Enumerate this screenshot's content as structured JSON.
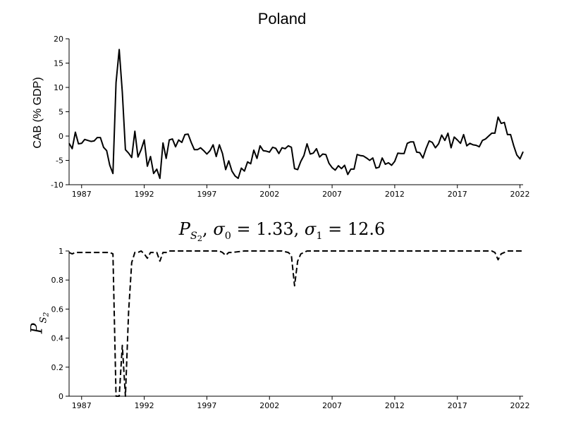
{
  "chart_data": [
    {
      "type": "line",
      "title": "Poland",
      "xlabel": "",
      "ylabel": "CAB (% GDP)",
      "xlim": [
        1986.0,
        2022.25
      ],
      "ylim": [
        -10,
        20
      ],
      "x_ticks": [
        1987,
        1992,
        1997,
        2002,
        2007,
        2012,
        2017,
        2022
      ],
      "y_ticks": [
        -10,
        -5,
        0,
        5,
        10,
        15,
        20
      ],
      "series": [
        {
          "name": "CAB",
          "line_style": "solid",
          "points": [
            [
              1986.0,
              -1.5
            ],
            [
              1986.25,
              -2.6
            ],
            [
              1986.5,
              0.8
            ],
            [
              1986.75,
              -1.6
            ],
            [
              1987.0,
              -1.5
            ],
            [
              1987.25,
              -0.7
            ],
            [
              1987.5,
              -0.9
            ],
            [
              1987.75,
              -1.1
            ],
            [
              1988.0,
              -1.0
            ],
            [
              1988.25,
              -0.3
            ],
            [
              1988.5,
              -0.3
            ],
            [
              1988.75,
              -2.3
            ],
            [
              1989.0,
              -3.0
            ],
            [
              1989.25,
              -6.0
            ],
            [
              1989.5,
              -7.7
            ],
            [
              1989.75,
              11.0
            ],
            [
              1990.0,
              17.8
            ],
            [
              1990.25,
              9.0
            ],
            [
              1990.5,
              -2.8
            ],
            [
              1990.75,
              -3.5
            ],
            [
              1991.0,
              -4.4
            ],
            [
              1991.25,
              1.0
            ],
            [
              1991.5,
              -4.3
            ],
            [
              1991.75,
              -2.8
            ],
            [
              1992.0,
              -0.8
            ],
            [
              1992.25,
              -6.2
            ],
            [
              1992.5,
              -4.2
            ],
            [
              1992.75,
              -7.7
            ],
            [
              1993.0,
              -6.8
            ],
            [
              1993.25,
              -8.7
            ],
            [
              1993.5,
              -1.4
            ],
            [
              1993.75,
              -4.6
            ],
            [
              1994.0,
              -0.8
            ],
            [
              1994.25,
              -0.6
            ],
            [
              1994.5,
              -2.2
            ],
            [
              1994.75,
              -0.8
            ],
            [
              1995.0,
              -1.3
            ],
            [
              1995.25,
              0.3
            ],
            [
              1995.5,
              0.4
            ],
            [
              1995.75,
              -1.3
            ],
            [
              1996.0,
              -2.8
            ],
            [
              1996.25,
              -2.8
            ],
            [
              1996.5,
              -2.4
            ],
            [
              1996.75,
              -3.0
            ],
            [
              1997.0,
              -3.7
            ],
            [
              1997.25,
              -3.0
            ],
            [
              1997.5,
              -1.8
            ],
            [
              1997.75,
              -4.2
            ],
            [
              1998.0,
              -1.8
            ],
            [
              1998.25,
              -3.6
            ],
            [
              1998.5,
              -6.9
            ],
            [
              1998.75,
              -5.1
            ],
            [
              1999.0,
              -7.2
            ],
            [
              1999.25,
              -8.2
            ],
            [
              1999.5,
              -8.7
            ],
            [
              1999.75,
              -6.6
            ],
            [
              2000.0,
              -7.2
            ],
            [
              2000.25,
              -5.3
            ],
            [
              2000.5,
              -5.7
            ],
            [
              2000.75,
              -2.9
            ],
            [
              2001.0,
              -4.6
            ],
            [
              2001.25,
              -2.0
            ],
            [
              2001.5,
              -3.0
            ],
            [
              2001.75,
              -3.1
            ],
            [
              2002.0,
              -3.3
            ],
            [
              2002.25,
              -2.3
            ],
            [
              2002.5,
              -2.5
            ],
            [
              2002.75,
              -3.6
            ],
            [
              2003.0,
              -2.4
            ],
            [
              2003.25,
              -2.6
            ],
            [
              2003.5,
              -2.0
            ],
            [
              2003.75,
              -2.3
            ],
            [
              2004.0,
              -6.7
            ],
            [
              2004.25,
              -6.9
            ],
            [
              2004.5,
              -5.2
            ],
            [
              2004.75,
              -4.0
            ],
            [
              2005.0,
              -1.6
            ],
            [
              2005.25,
              -3.7
            ],
            [
              2005.5,
              -3.5
            ],
            [
              2005.75,
              -2.6
            ],
            [
              2006.0,
              -4.3
            ],
            [
              2006.25,
              -3.7
            ],
            [
              2006.5,
              -3.8
            ],
            [
              2006.75,
              -5.6
            ],
            [
              2007.0,
              -6.5
            ],
            [
              2007.25,
              -7.0
            ],
            [
              2007.5,
              -6.1
            ],
            [
              2007.75,
              -6.7
            ],
            [
              2008.0,
              -6.0
            ],
            [
              2008.25,
              -7.9
            ],
            [
              2008.5,
              -6.8
            ],
            [
              2008.75,
              -6.8
            ],
            [
              2009.0,
              -3.8
            ],
            [
              2009.25,
              -4.0
            ],
            [
              2009.5,
              -4.1
            ],
            [
              2009.75,
              -4.5
            ],
            [
              2010.0,
              -5.0
            ],
            [
              2010.25,
              -4.5
            ],
            [
              2010.5,
              -6.6
            ],
            [
              2010.75,
              -6.4
            ],
            [
              2011.0,
              -4.5
            ],
            [
              2011.25,
              -5.8
            ],
            [
              2011.5,
              -5.5
            ],
            [
              2011.75,
              -6.0
            ],
            [
              2012.0,
              -5.2
            ],
            [
              2012.25,
              -3.5
            ],
            [
              2012.5,
              -3.6
            ],
            [
              2012.75,
              -3.6
            ],
            [
              2013.0,
              -1.5
            ],
            [
              2013.25,
              -1.2
            ],
            [
              2013.5,
              -1.2
            ],
            [
              2013.75,
              -3.3
            ],
            [
              2014.0,
              -3.4
            ],
            [
              2014.25,
              -4.5
            ],
            [
              2014.5,
              -2.6
            ],
            [
              2014.75,
              -1.0
            ],
            [
              2015.0,
              -1.3
            ],
            [
              2015.25,
              -2.4
            ],
            [
              2015.5,
              -1.6
            ],
            [
              2015.75,
              0.2
            ],
            [
              2016.0,
              -0.9
            ],
            [
              2016.25,
              0.6
            ],
            [
              2016.5,
              -2.4
            ],
            [
              2016.75,
              -0.2
            ],
            [
              2017.0,
              -0.8
            ],
            [
              2017.25,
              -1.5
            ],
            [
              2017.5,
              0.3
            ],
            [
              2017.75,
              -2.0
            ],
            [
              2018.0,
              -1.5
            ],
            [
              2018.25,
              -1.8
            ],
            [
              2018.5,
              -1.9
            ],
            [
              2018.75,
              -2.2
            ],
            [
              2019.0,
              -0.9
            ],
            [
              2019.25,
              -0.6
            ],
            [
              2019.5,
              0.0
            ],
            [
              2019.75,
              0.6
            ],
            [
              2020.0,
              0.6
            ],
            [
              2020.25,
              3.9
            ],
            [
              2020.5,
              2.6
            ],
            [
              2020.75,
              2.8
            ],
            [
              2021.0,
              0.3
            ],
            [
              2021.25,
              0.3
            ],
            [
              2021.5,
              -2.0
            ],
            [
              2021.75,
              -3.9
            ],
            [
              2022.0,
              -4.7
            ],
            [
              2022.25,
              -3.2
            ]
          ]
        }
      ]
    },
    {
      "type": "line",
      "title_parts": {
        "p": "P",
        "s": "S",
        "two": "2",
        "sigma0": "σ",
        "zero": "0",
        "eq0": " = 1.33, ",
        "sigma1": "σ",
        "one": "1",
        "eq1": " = 12.6"
      },
      "xlabel": "",
      "ylabel_parts": {
        "p": "P",
        "s": "S",
        "two": "2"
      },
      "xlim": [
        1986.0,
        2022.25
      ],
      "ylim": [
        0,
        1
      ],
      "x_ticks": [
        1987,
        1992,
        1997,
        2002,
        2007,
        2012,
        2017,
        2022
      ],
      "y_ticks": [
        0,
        0.2,
        0.4,
        0.6,
        0.8,
        1
      ],
      "y_tick_labels": [
        "0",
        "0.2",
        "0.4",
        "0.6",
        "0.8",
        "1"
      ],
      "series": [
        {
          "name": "P_S2",
          "line_style": "dashed",
          "points": [
            [
              1986.0,
              0.99
            ],
            [
              1986.25,
              0.98
            ],
            [
              1986.5,
              0.99
            ],
            [
              1986.75,
              0.99
            ],
            [
              1987.0,
              0.99
            ],
            [
              1987.5,
              0.99
            ],
            [
              1988.0,
              0.99
            ],
            [
              1988.5,
              0.99
            ],
            [
              1989.0,
              0.99
            ],
            [
              1989.25,
              0.99
            ],
            [
              1989.5,
              0.98
            ],
            [
              1989.75,
              0.0
            ],
            [
              1990.0,
              0.0
            ],
            [
              1990.25,
              0.35
            ],
            [
              1990.5,
              0.0
            ],
            [
              1990.75,
              0.58
            ],
            [
              1991.0,
              0.92
            ],
            [
              1991.25,
              0.99
            ],
            [
              1991.5,
              0.99
            ],
            [
              1991.75,
              1.0
            ],
            [
              1992.0,
              0.98
            ],
            [
              1992.25,
              0.95
            ],
            [
              1992.5,
              0.99
            ],
            [
              1992.75,
              0.99
            ],
            [
              1993.0,
              0.99
            ],
            [
              1993.25,
              0.93
            ],
            [
              1993.5,
              0.99
            ],
            [
              1993.75,
              0.99
            ],
            [
              1994.0,
              1.0
            ],
            [
              1995.0,
              1.0
            ],
            [
              1996.0,
              1.0
            ],
            [
              1997.0,
              1.0
            ],
            [
              1998.0,
              1.0
            ],
            [
              1998.25,
              0.99
            ],
            [
              1998.5,
              0.97
            ],
            [
              1998.75,
              0.99
            ],
            [
              1999.0,
              0.99
            ],
            [
              2000.0,
              1.0
            ],
            [
              2001.0,
              1.0
            ],
            [
              2002.0,
              1.0
            ],
            [
              2003.0,
              1.0
            ],
            [
              2003.5,
              0.99
            ],
            [
              2003.75,
              0.97
            ],
            [
              2004.0,
              0.76
            ],
            [
              2004.25,
              0.93
            ],
            [
              2004.5,
              0.98
            ],
            [
              2004.75,
              0.99
            ],
            [
              2005.0,
              1.0
            ],
            [
              2006.0,
              1.0
            ],
            [
              2007.0,
              1.0
            ],
            [
              2008.0,
              1.0
            ],
            [
              2009.0,
              1.0
            ],
            [
              2010.0,
              1.0
            ],
            [
              2011.0,
              1.0
            ],
            [
              2012.0,
              1.0
            ],
            [
              2013.0,
              1.0
            ],
            [
              2014.0,
              1.0
            ],
            [
              2015.0,
              1.0
            ],
            [
              2016.0,
              1.0
            ],
            [
              2017.0,
              1.0
            ],
            [
              2018.0,
              1.0
            ],
            [
              2019.0,
              1.0
            ],
            [
              2019.75,
              1.0
            ],
            [
              2020.0,
              0.99
            ],
            [
              2020.25,
              0.94
            ],
            [
              2020.5,
              0.98
            ],
            [
              2020.75,
              0.99
            ],
            [
              2021.0,
              1.0
            ],
            [
              2022.0,
              1.0
            ],
            [
              2022.25,
              1.0
            ]
          ]
        }
      ]
    }
  ]
}
